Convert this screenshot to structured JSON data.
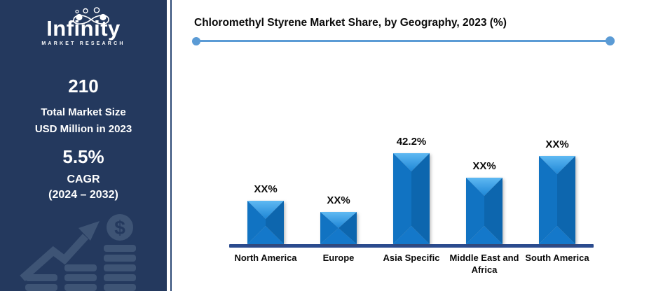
{
  "sidebar": {
    "logo": {
      "title": "Infinity",
      "subtitle": "MARKET RESEARCH"
    },
    "market_size": {
      "value": "210",
      "label_line1": "Total Market Size",
      "label_line2": "USD Million in 2023"
    },
    "cagr": {
      "value": "5.5%",
      "label": "CAGR",
      "period": "(2024 – 2032)"
    }
  },
  "chart": {
    "title": "Chloromethyl Styrene Market Share, by Geography, 2023 (%)"
  },
  "colors": {
    "sidebar_bg": "#24395E",
    "watermark": "#3E5475",
    "divider": "#2D4A76",
    "accent_line": "#5B9BD5",
    "axis": "#2B4B8E",
    "bar_top_light": "#5FB9F2",
    "bar_top_deep": "#1E86D6",
    "bar_left": "#1173C2",
    "bar_right": "#0D66AE",
    "bar_bottom": "#1478CA"
  },
  "chart_data": {
    "type": "bar",
    "title": "Chloromethyl Styrene Market Share, by Geography, 2023 (%)",
    "categories": [
      "North America",
      "Europe",
      "Asia Specific",
      "Middle East and Africa",
      "South America"
    ],
    "labels": [
      "XX%",
      "XX%",
      "42.2%",
      "XX%",
      "XX%"
    ],
    "values": [
      20,
      15,
      42.2,
      31,
      41
    ],
    "value_note": "Only the Asia Specific bar shows a numeric label (42.2%); other bars are masked as XX% and their values are estimated from bar heights",
    "unit": "%",
    "ylim": [
      0,
      45
    ],
    "grid": false,
    "legend": false
  }
}
